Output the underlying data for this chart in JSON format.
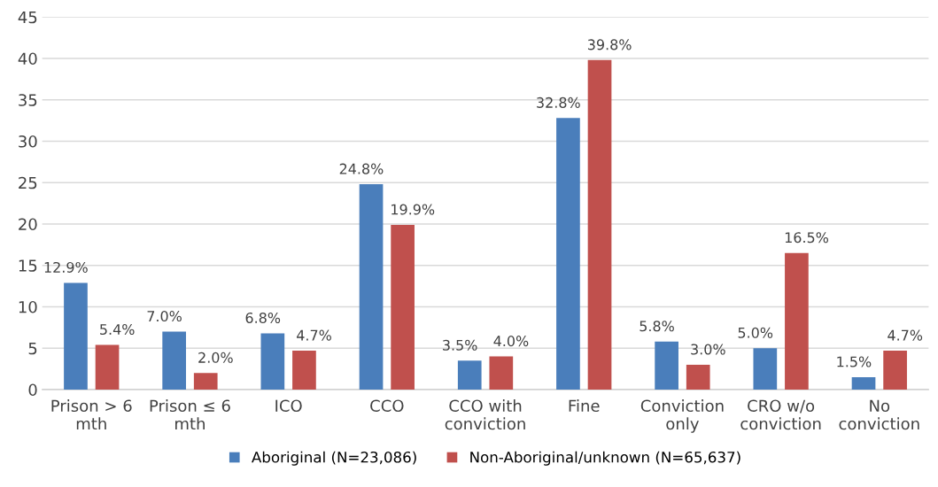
{
  "chart_data": {
    "type": "bar",
    "categories": [
      "Prison > 6\nmth",
      "Prison ≤ 6\nmth",
      "ICO",
      "CCO",
      "CCO with\nconviction",
      "Fine",
      "Conviction\nonly",
      "CRO w/o\nconviction",
      "No\nconviction"
    ],
    "series": [
      {
        "name": "Aboriginal (N=23,086)",
        "color": "#4a7ebb",
        "values": [
          12.9,
          7.0,
          6.8,
          24.8,
          3.5,
          32.8,
          5.8,
          5.0,
          1.5
        ],
        "value_labels": [
          "12.9%",
          "7.0%",
          "6.8%",
          "24.8%",
          "3.5%",
          "32.8%",
          "5.8%",
          "5.0%",
          "1.5%"
        ]
      },
      {
        "name": "Non-Aboriginal/unknown (N=65,637)",
        "color": "#c0504d",
        "values": [
          5.4,
          2.0,
          4.7,
          19.9,
          4.0,
          39.8,
          3.0,
          16.5,
          4.7
        ],
        "value_labels": [
          "5.4%",
          "2.0%",
          "4.7%",
          "19.9%",
          "4.0%",
          "39.8%",
          "3.0%",
          "16.5%",
          "4.7%"
        ]
      }
    ],
    "ylim": [
      0,
      45
    ],
    "yticks": [
      0,
      5,
      10,
      15,
      20,
      25,
      30,
      35,
      40,
      45
    ],
    "grid": "y",
    "legend": "bottom"
  }
}
